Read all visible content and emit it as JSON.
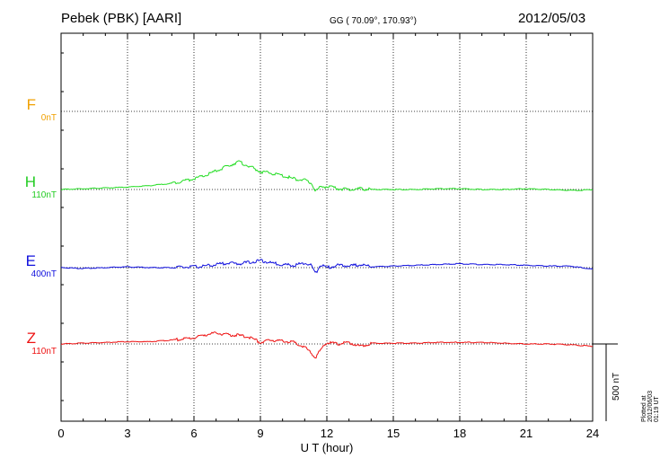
{
  "header": {
    "title": "Pebek (PBK)  [AARI]",
    "coords": "GG ( 70.09°, 170.93°)",
    "date": "2012/05/03"
  },
  "plotted_note": "Plotted at 2012/06/03 01:19 UT",
  "chart_data": {
    "type": "line",
    "title": "Pebek (PBK)  [AARI]",
    "xlabel": "U T (hour)",
    "ylabel": "",
    "xlim": [
      0,
      24
    ],
    "x_ticks": [
      "0",
      "3",
      "6",
      "9",
      "12",
      "15",
      "18",
      "21",
      "24"
    ],
    "grid": true,
    "scale_bar": {
      "label": "500 nT",
      "value_nT": 500
    },
    "series": [
      {
        "name": "F",
        "offset": "0nT",
        "color": "#f0a000",
        "x": [],
        "y": []
      },
      {
        "name": "H",
        "offset": "110nT",
        "color": "#22dd22",
        "x": [
          0,
          1,
          2,
          3,
          4,
          5,
          6,
          6.5,
          7,
          7.5,
          8,
          8.5,
          9,
          9.5,
          10,
          10.5,
          11,
          11.3,
          11.5,
          11.7,
          12,
          12.5,
          13,
          13.5,
          14,
          15,
          16,
          17,
          18,
          19,
          20,
          21,
          22,
          23,
          23.5,
          24
        ],
        "y": [
          0,
          5,
          10,
          15,
          25,
          40,
          70,
          90,
          120,
          150,
          180,
          150,
          115,
          105,
          90,
          70,
          60,
          40,
          -10,
          15,
          20,
          5,
          0,
          5,
          0,
          0,
          0,
          5,
          5,
          0,
          0,
          5,
          0,
          -5,
          -5,
          0
        ]
      },
      {
        "name": "E",
        "offset": "400nT",
        "color": "#1010dd",
        "x": [
          0,
          1,
          2,
          3,
          4,
          5,
          6,
          6.5,
          7,
          7.5,
          8,
          8.5,
          9,
          9.5,
          10,
          10.5,
          11,
          11.3,
          11.5,
          11.7,
          12,
          12.5,
          13,
          13.5,
          14,
          15,
          16,
          17,
          18,
          19,
          20,
          21,
          22,
          23,
          23.5,
          24
        ],
        "y": [
          0,
          -5,
          0,
          5,
          0,
          0,
          5,
          10,
          20,
          30,
          25,
          35,
          45,
          30,
          20,
          15,
          30,
          15,
          -40,
          20,
          0,
          15,
          10,
          20,
          5,
          10,
          15,
          20,
          25,
          20,
          20,
          15,
          10,
          10,
          0,
          -10
        ]
      },
      {
        "name": "Z",
        "offset": "110nT",
        "color": "#ee1111",
        "x": [
          0,
          1,
          2,
          3,
          4,
          5,
          6,
          6.5,
          7,
          7.5,
          8,
          8.5,
          9,
          9.5,
          10,
          10.5,
          11,
          11.3,
          11.5,
          11.7,
          12,
          12.5,
          13,
          13.5,
          14,
          15,
          16,
          17,
          18,
          19,
          20,
          21,
          22,
          23,
          23.5,
          24
        ],
        "y": [
          0,
          5,
          10,
          15,
          15,
          25,
          40,
          60,
          70,
          60,
          55,
          45,
          10,
          25,
          20,
          10,
          -20,
          -60,
          -90,
          -40,
          10,
          0,
          10,
          -15,
          5,
          5,
          5,
          10,
          10,
          10,
          5,
          0,
          0,
          -5,
          -10,
          -15
        ]
      }
    ]
  },
  "colors": {
    "F": "#f0a000",
    "H": "#22dd22",
    "E": "#1010dd",
    "Z": "#ee1111"
  }
}
